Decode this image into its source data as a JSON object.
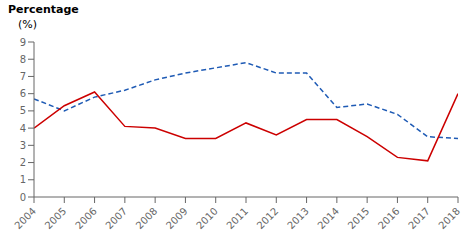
{
  "chart_data": {
    "type": "line",
    "ylabel": [
      "Percentage",
      "(%)"
    ],
    "x": [
      2004,
      2005,
      2006,
      2007,
      2008,
      2009,
      2010,
      2011,
      2012,
      2013,
      2014,
      2015,
      2016,
      2017,
      2018
    ],
    "series": [
      {
        "color": "#1f5bb5",
        "line_style": "dashed",
        "values": [
          5.7,
          5.0,
          5.8,
          6.2,
          6.8,
          7.2,
          7.5,
          7.8,
          7.2,
          7.2,
          5.2,
          5.4,
          4.8,
          3.5,
          3.4
        ]
      },
      {
        "color": "#cc0000",
        "line_style": "solid",
        "values": [
          4.0,
          5.3,
          6.1,
          4.1,
          4.0,
          3.4,
          3.4,
          4.3,
          3.6,
          4.5,
          4.5,
          3.5,
          2.3,
          2.1,
          6.0
        ]
      }
    ],
    "xlim": [
      2004,
      2018
    ],
    "xticks": [
      2004,
      2005,
      2006,
      2007,
      2008,
      2009,
      2010,
      2011,
      2012,
      2013,
      2014,
      2015,
      2016,
      2017,
      2018
    ],
    "ylim": [
      0,
      9
    ],
    "yticks": [
      0,
      1,
      2,
      3,
      4,
      5,
      6,
      7,
      8,
      9
    ],
    "grid": false
  }
}
